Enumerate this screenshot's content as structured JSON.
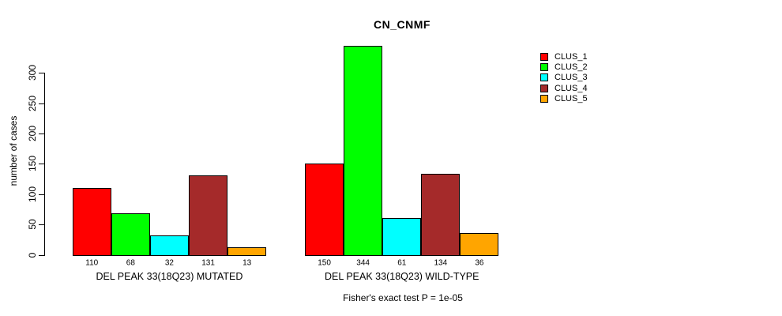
{
  "title": "CN_CNMF",
  "ylabel": "number of cases",
  "footer": "Fisher's exact test P = 1e-05",
  "legend": {
    "items": [
      {
        "label": "CLUS_1",
        "color": "#FF0000"
      },
      {
        "label": "CLUS_2",
        "color": "#00FF00"
      },
      {
        "label": "CLUS_3",
        "color": "#00FFFF"
      },
      {
        "label": "CLUS_4",
        "color": "#A52A2A"
      },
      {
        "label": "CLUS_5",
        "color": "#FFA500"
      }
    ]
  },
  "chart_data": {
    "type": "bar",
    "title": "CN_CNMF",
    "xlabel": "",
    "ylabel": "number of cases",
    "ylim": [
      0,
      300
    ],
    "yticks": [
      0,
      50,
      100,
      150,
      200,
      250,
      300
    ],
    "grid": false,
    "legend_position": "top-right",
    "series": [
      "CLUS_1",
      "CLUS_2",
      "CLUS_3",
      "CLUS_4",
      "CLUS_5"
    ],
    "colors": [
      "#FF0000",
      "#00FF00",
      "#00FFFF",
      "#A52A2A",
      "#FFA500"
    ],
    "groups": [
      {
        "label": "DEL PEAK 33(18Q23) MUTATED",
        "values": [
          110,
          68,
          32,
          131,
          13
        ]
      },
      {
        "label": "DEL PEAK 33(18Q23) WILD-TYPE",
        "values": [
          150,
          344,
          61,
          134,
          36
        ]
      }
    ],
    "bar_value_labels": [
      [
        110,
        68,
        32,
        131,
        13
      ],
      [
        150,
        344,
        61,
        134,
        36
      ]
    ],
    "annotation": "Fisher's exact test P = 1e-05"
  }
}
